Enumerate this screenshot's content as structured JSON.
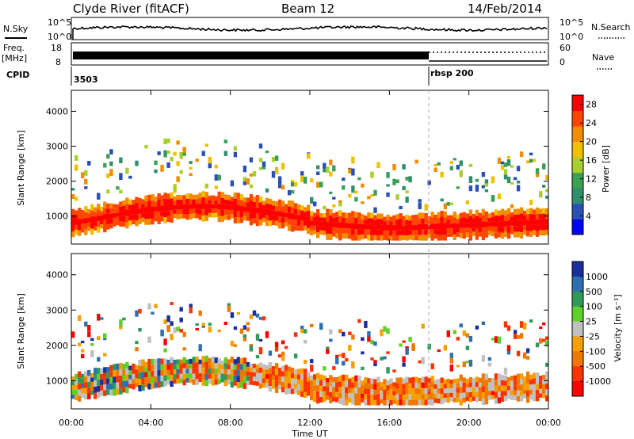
{
  "header": {
    "station": "Clyde River (fitACF)",
    "beam": "Beam 12",
    "date": "14/Feb/2014"
  },
  "strips": {
    "nsky": {
      "label": "N.Sky",
      "ticks_left": [
        "10^5",
        "10^0"
      ],
      "ticks_right": [
        "10^5",
        "10^0"
      ],
      "right_label": "N.Search"
    },
    "freq": {
      "label_line1": "Freq.",
      "label_line2": "[MHz]",
      "ticks_left": [
        "18",
        "8"
      ],
      "ticks_right": [
        "60",
        "0"
      ],
      "right_label": "Nave"
    },
    "cpid": {
      "label": "CPID",
      "segments": [
        {
          "text": "3503",
          "start_hour": 0
        },
        {
          "text": "rbsp 200",
          "start_hour": 18
        }
      ]
    }
  },
  "colors": {
    "power": [
      "#0000ff",
      "#2a4fb5",
      "#2f8f6a",
      "#3aa055",
      "#a8cf2c",
      "#f0c000",
      "#f28c00",
      "#ff4500",
      "#ff0000"
    ],
    "velocity": [
      "#1a2ea0",
      "#2e6fb0",
      "#2e9a5a",
      "#5fcf2a",
      "#c0c0c0",
      "#f5a000",
      "#f07800",
      "#ff3300",
      "#ff0000"
    ]
  },
  "chart_data": [
    {
      "type": "heatmap",
      "name": "power",
      "ylabel": "Slant Range [km]",
      "yticks": [
        1000,
        2000,
        3000,
        4000
      ],
      "ylim": [
        200,
        4600
      ],
      "xlim": [
        0,
        24
      ],
      "colorbar": {
        "label": "Power [dB]",
        "ticks": [
          4,
          8,
          12,
          16,
          20,
          24,
          28
        ],
        "range": [
          0,
          30
        ]
      }
    },
    {
      "type": "heatmap",
      "name": "velocity",
      "ylabel": "Slant Range [km]",
      "yticks": [
        1000,
        2000,
        3000,
        4000
      ],
      "ylim": [
        200,
        4600
      ],
      "xlim": [
        0,
        24
      ],
      "xlabel": "Time UT",
      "xticks": [
        "00:00",
        "04:00",
        "08:00",
        "12:00",
        "16:00",
        "20:00",
        "00:00"
      ],
      "colorbar": {
        "label": "Velocity [m s⁻¹]",
        "ticks": [
          "1000",
          "500",
          "100",
          "25",
          "-25",
          "-100",
          "-500",
          "-1000"
        ]
      }
    }
  ]
}
